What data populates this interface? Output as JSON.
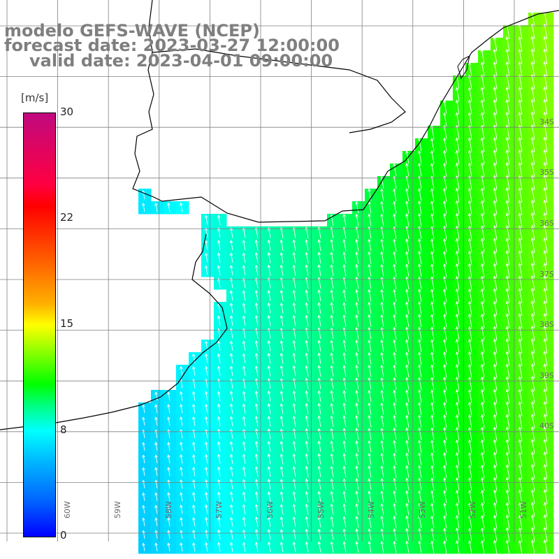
{
  "header": {
    "title_line_1": "modelo GEFS-WAVE (NCEP)",
    "title_line_2": "forecast date: 2023-03-27 12:00:00",
    "title_line_3": "valid date: 2023-04-01 09:00:00"
  },
  "colorbar": {
    "unit": "[m/s]",
    "ticks": [
      "30",
      "22",
      "15",
      "8",
      "0"
    ],
    "range": [
      0,
      30
    ],
    "colors": [
      "#0000ff",
      "#0060ff",
      "#00b0ff",
      "#00ffff",
      "#00ff80",
      "#00ff00",
      "#80ff00",
      "#ffff00",
      "#ffb000",
      "#ff6000",
      "#ff0000",
      "#ff0040",
      "#c0097f"
    ]
  },
  "axes": {
    "lat_labels": [
      "34S",
      "35S",
      "36S",
      "37S",
      "38S",
      "39S",
      "40S"
    ],
    "lon_labels": [
      "60W",
      "59W",
      "58W",
      "57W",
      "56W",
      "55W",
      "54W",
      "53W",
      "52W",
      "51W"
    ]
  },
  "field": {
    "variable": "wind speed",
    "min_speed": 3,
    "max_speed": 15,
    "vector_direction": "from south / southwest"
  },
  "colors": {
    "title": "#7f7f7f",
    "grid": "#7f7f7f",
    "coastline": "#000000",
    "land": "#ffffff",
    "vectors": "#ffffff"
  }
}
